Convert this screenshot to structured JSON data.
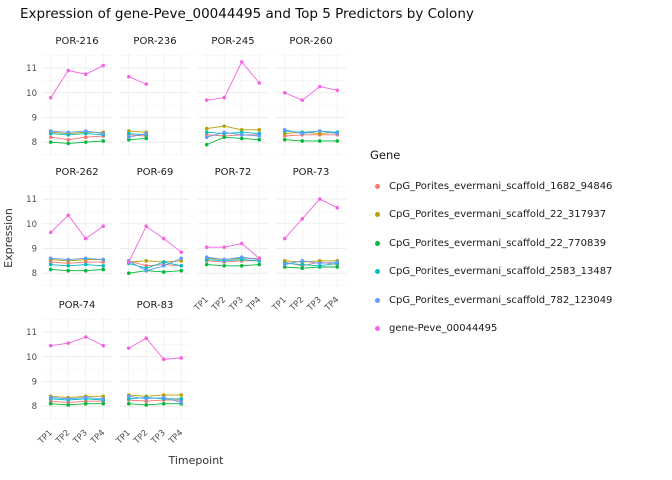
{
  "chart_data": {
    "type": "line",
    "title": "Expression of gene-Peve_00044495 and Top 5 Predictors by Colony",
    "xlabel": "Timepoint",
    "ylabel": "Expression",
    "legend_title": "Gene",
    "legend_position": "right",
    "grid": true,
    "x": [
      "TP1",
      "TP2",
      "TP3",
      "TP4"
    ],
    "ylim": [
      7.4,
      11.65
    ],
    "yticks": [
      8,
      9,
      10,
      11
    ],
    "series": [
      {
        "name": "CpG_Porites_evermani_scaffold_1682_94846",
        "color": "#F8766D"
      },
      {
        "name": "CpG_Porites_evermani_scaffold_22_317937",
        "color": "#B79F00"
      },
      {
        "name": "CpG_Porites_evermani_scaffold_22_770839",
        "color": "#00BA38"
      },
      {
        "name": "CpG_Porites_evermani_scaffold_2583_13487",
        "color": "#00BFC4"
      },
      {
        "name": "CpG_Porites_evermani_scaffold_782_123049",
        "color": "#619CFF"
      },
      {
        "name": "gene-Peve_00044495",
        "color": "#F564E3"
      }
    ],
    "facets": [
      {
        "name": "POR-216",
        "values": [
          [
            8.2,
            8.1,
            8.2,
            8.25
          ],
          [
            8.4,
            8.35,
            8.4,
            8.4
          ],
          [
            8.0,
            7.95,
            8.0,
            8.05
          ],
          [
            8.35,
            8.3,
            8.35,
            8.3
          ],
          [
            8.45,
            8.4,
            8.45,
            8.35
          ],
          [
            9.8,
            10.9,
            10.75,
            11.1
          ]
        ]
      },
      {
        "name": "POR-236",
        "values": [
          [
            8.3,
            8.25,
            null,
            null
          ],
          [
            8.45,
            8.4,
            null,
            null
          ],
          [
            8.1,
            8.15,
            null,
            null
          ],
          [
            8.35,
            8.3,
            null,
            null
          ],
          [
            8.2,
            8.35,
            null,
            null
          ],
          [
            10.65,
            10.35,
            null,
            null
          ]
        ]
      },
      {
        "name": "POR-245",
        "values": [
          [
            8.3,
            8.25,
            8.3,
            8.3
          ],
          [
            8.55,
            8.65,
            8.5,
            8.5
          ],
          [
            7.9,
            8.2,
            8.15,
            8.1
          ],
          [
            8.4,
            8.35,
            8.4,
            8.35
          ],
          [
            8.2,
            8.4,
            8.3,
            8.25
          ],
          [
            9.7,
            9.8,
            11.25,
            10.4
          ]
        ]
      },
      {
        "name": "POR-260",
        "values": [
          [
            8.25,
            8.3,
            8.3,
            8.3
          ],
          [
            8.35,
            8.4,
            8.35,
            8.4
          ],
          [
            8.1,
            8.05,
            8.05,
            8.05
          ],
          [
            8.45,
            8.4,
            8.45,
            8.4
          ],
          [
            8.5,
            8.35,
            8.45,
            8.35
          ],
          [
            10.0,
            9.7,
            10.25,
            10.1
          ]
        ]
      },
      {
        "name": "POR-262",
        "values": [
          [
            8.45,
            8.4,
            8.45,
            8.45
          ],
          [
            8.55,
            8.5,
            8.55,
            8.55
          ],
          [
            8.15,
            8.1,
            8.1,
            8.15
          ],
          [
            8.35,
            8.3,
            8.35,
            8.3
          ],
          [
            8.6,
            8.55,
            8.6,
            8.55
          ],
          [
            9.65,
            10.35,
            9.4,
            9.9
          ]
        ]
      },
      {
        "name": "POR-69",
        "values": [
          [
            8.5,
            8.3,
            8.35,
            8.3
          ],
          [
            8.45,
            8.5,
            8.45,
            8.5
          ],
          [
            8.0,
            8.1,
            8.05,
            8.1
          ],
          [
            8.4,
            8.2,
            8.45,
            8.3
          ],
          [
            8.5,
            8.1,
            8.3,
            8.6
          ],
          [
            8.45,
            9.9,
            9.4,
            8.85
          ]
        ]
      },
      {
        "name": "POR-72",
        "values": [
          [
            8.5,
            8.45,
            8.5,
            8.5
          ],
          [
            8.6,
            8.55,
            8.6,
            8.6
          ],
          [
            8.35,
            8.3,
            8.3,
            8.35
          ],
          [
            8.55,
            8.5,
            8.55,
            8.5
          ],
          [
            8.65,
            8.55,
            8.65,
            8.55
          ],
          [
            9.05,
            9.05,
            9.2,
            8.6
          ]
        ]
      },
      {
        "name": "POR-73",
        "values": [
          [
            8.45,
            8.3,
            8.45,
            8.35
          ],
          [
            8.5,
            8.45,
            8.5,
            8.5
          ],
          [
            8.25,
            8.2,
            8.25,
            8.25
          ],
          [
            8.4,
            8.35,
            8.3,
            8.4
          ],
          [
            8.35,
            8.5,
            8.4,
            8.45
          ],
          [
            9.4,
            10.2,
            11.0,
            10.65
          ]
        ]
      },
      {
        "name": "POR-74",
        "values": [
          [
            8.2,
            8.15,
            8.2,
            8.2
          ],
          [
            8.4,
            8.35,
            8.4,
            8.4
          ],
          [
            8.1,
            8.05,
            8.1,
            8.1
          ],
          [
            8.3,
            8.25,
            8.3,
            8.25
          ],
          [
            8.35,
            8.3,
            8.35,
            8.3
          ],
          [
            10.45,
            10.55,
            10.8,
            10.45
          ]
        ]
      },
      {
        "name": "POR-83",
        "values": [
          [
            8.25,
            8.2,
            8.25,
            8.25
          ],
          [
            8.45,
            8.4,
            8.45,
            8.45
          ],
          [
            8.1,
            8.05,
            8.1,
            8.1
          ],
          [
            8.3,
            8.35,
            8.3,
            8.3
          ],
          [
            8.4,
            8.3,
            8.35,
            8.15
          ],
          [
            10.35,
            10.75,
            9.9,
            9.95
          ]
        ]
      }
    ]
  }
}
